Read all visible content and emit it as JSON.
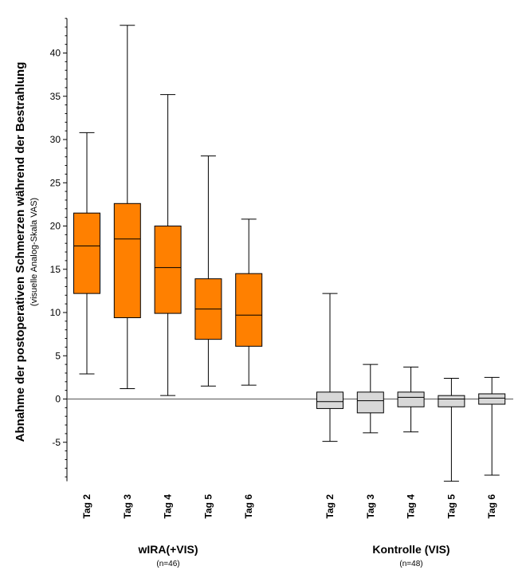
{
  "chart_data": {
    "type": "boxplot",
    "ylabel": "Abnahme der postoperativen Schmerzen während der Bestrahlung",
    "ylabel_sub": "(visuelle Analog-Skala VAS)",
    "ylim": [
      -9.5,
      44
    ],
    "yticks": [
      -5,
      0,
      5,
      10,
      15,
      20,
      25,
      30,
      35,
      40
    ],
    "reference_line": 0,
    "groups": [
      {
        "name": "wIRA(+VIS)",
        "n_label": "(n=46)",
        "color": "#ff8000",
        "categories": [
          "Tag 2",
          "Tag 3",
          "Tag 4",
          "Tag 5",
          "Tag 6"
        ],
        "boxes": [
          {
            "min": 2.9,
            "q1": 12.2,
            "median": 17.7,
            "q3": 21.5,
            "max": 30.8
          },
          {
            "min": 1.2,
            "q1": 9.4,
            "median": 18.5,
            "q3": 22.6,
            "max": 43.2
          },
          {
            "min": 0.4,
            "q1": 9.9,
            "median": 15.2,
            "q3": 20.0,
            "max": 35.2
          },
          {
            "min": 1.5,
            "q1": 6.9,
            "median": 10.4,
            "q3": 13.9,
            "max": 28.1
          },
          {
            "min": 1.6,
            "q1": 6.1,
            "median": 9.7,
            "q3": 14.5,
            "max": 20.8
          }
        ]
      },
      {
        "name": "Kontrolle (VIS)",
        "n_label": "(n=48)",
        "color": "#d8d8d8",
        "categories": [
          "Tag 2",
          "Tag 3",
          "Tag 4",
          "Tag 5",
          "Tag 6"
        ],
        "boxes": [
          {
            "min": -4.9,
            "q1": -1.1,
            "median": -0.3,
            "q3": 0.8,
            "max": 12.2
          },
          {
            "min": -3.9,
            "q1": -1.6,
            "median": -0.2,
            "q3": 0.8,
            "max": 4.0
          },
          {
            "min": -3.8,
            "q1": -0.9,
            "median": 0.2,
            "q3": 0.8,
            "max": 3.7
          },
          {
            "min": -9.5,
            "q1": -0.9,
            "median": 0.0,
            "q3": 0.4,
            "max": 2.4
          },
          {
            "min": -8.8,
            "q1": -0.6,
            "median": 0.1,
            "q3": 0.6,
            "max": 2.5
          }
        ]
      }
    ]
  }
}
